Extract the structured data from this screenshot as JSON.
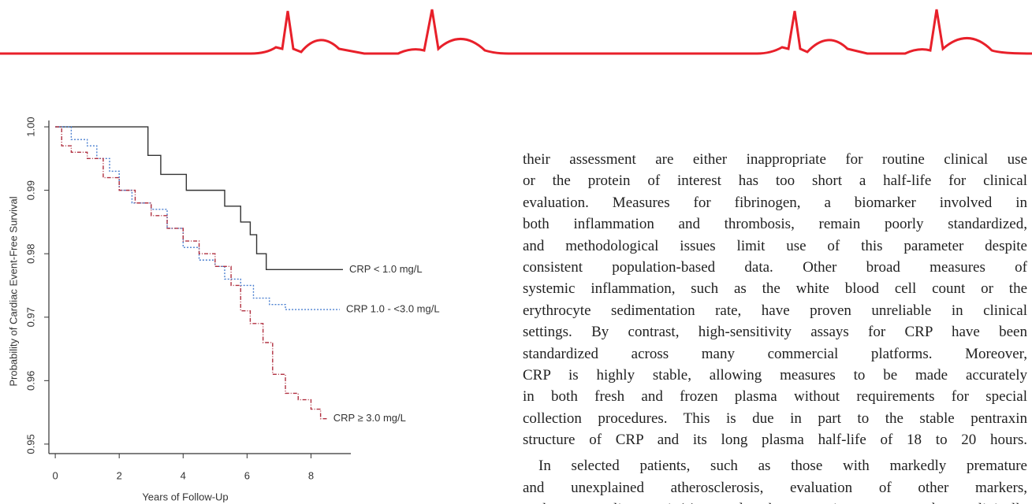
{
  "chart_data": {
    "type": "step-line",
    "x_label": "Years of Follow-Up",
    "y_label": "Probability of Cardiac Event-Free Survival",
    "xlim": [
      -0.2,
      9.0
    ],
    "xticks": [
      0,
      2,
      4,
      6,
      8
    ],
    "ylim": [
      0.9485,
      1.001
    ],
    "yticks": [
      {
        "value": 1,
        "label": "1.00"
      },
      0.99,
      0.98,
      0.97,
      0.96,
      0.95
    ],
    "series": [
      {
        "name": "CRP < 1.0 mg/L",
        "color": "#333333",
        "x": [
          0,
          2.9,
          3.3,
          4.1,
          5.3,
          5.8,
          6.1,
          6.3,
          6.6,
          9.0
        ],
        "values": [
          1.0,
          0.9955,
          0.9925,
          0.99,
          0.9875,
          0.985,
          0.983,
          0.98,
          0.9775,
          0.9775
        ]
      },
      {
        "name": "CRP 1.0 - <3.0 mg/L",
        "color": "#4a7fd0",
        "x": [
          0,
          0.5,
          1.0,
          1.3,
          1.7,
          2.0,
          2.4,
          3.0,
          3.5,
          4.0,
          4.5,
          5.0,
          5.3,
          5.8,
          6.2,
          6.7,
          7.2,
          8.9
        ],
        "values": [
          1.0,
          0.998,
          0.997,
          0.995,
          0.993,
          0.99,
          0.988,
          0.987,
          0.984,
          0.981,
          0.979,
          0.978,
          0.976,
          0.975,
          0.973,
          0.972,
          0.9712,
          0.9712
        ]
      },
      {
        "name": "CRP ≥ 3.0 mg/L",
        "color": "#b03040",
        "x": [
          0,
          0.2,
          0.5,
          1.0,
          1.5,
          2.0,
          2.5,
          3.0,
          3.5,
          4.0,
          4.5,
          5.0,
          5.5,
          5.8,
          6.1,
          6.5,
          6.8,
          7.2,
          7.6,
          8.0,
          8.3,
          8.5
        ],
        "values": [
          1.0,
          0.997,
          0.996,
          0.995,
          0.992,
          0.99,
          0.988,
          0.986,
          0.984,
          0.982,
          0.98,
          0.978,
          0.975,
          0.971,
          0.969,
          0.966,
          0.961,
          0.958,
          0.957,
          0.9555,
          0.954,
          0.954
        ]
      }
    ]
  },
  "body": {
    "paragraphs": [
      {
        "lines": [
          "their assessment are either inappropriate for routine clinical use",
          "or the protein of interest has too short a half-life for clinical",
          "evaluation. Measures for fibrinogen, a biomarker involved in",
          "both inflammation and thrombosis, remain poorly standardized,",
          "and methodological issues limit use of this parameter despite",
          "consistent population-based data. Other broad measures of",
          "systemic inflammation, such as the white blood cell count or the",
          "erythrocyte sedimentation rate, have proven unreliable in clinical",
          "settings. By contrast, high-sensitivity assays for CRP have been",
          "standardized across many commercial platforms. Moreover,",
          "CRP is highly stable, allowing measures to be made accurately",
          "in both fresh and frozen plasma without requirements for special",
          "collection procedures. This is due in part to the stable pentraxin",
          "structure of CRP and its long plasma half-life of 18 to 20 hours."
        ]
      },
      {
        "lines": [
          "In selected patients, such as those with markedly premature",
          "and unexplained atherosclerosis, evaluation of other markers,",
          "such as lipoprotein(a) and homocysteine, may be clinically"
        ]
      }
    ]
  }
}
